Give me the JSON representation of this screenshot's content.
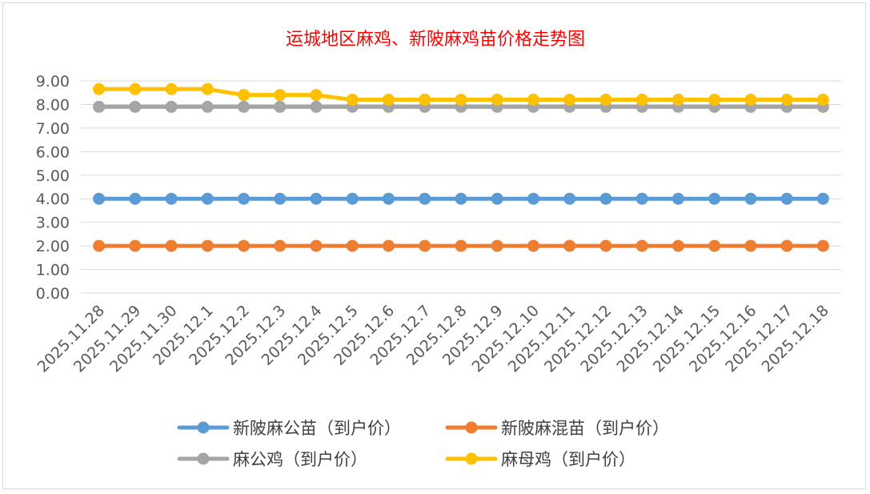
{
  "chart_data": {
    "type": "line",
    "title": "运城地区麻鸡、新陂麻鸡苗价格走势图",
    "xlabel": "",
    "ylabel": "",
    "ylim": [
      0,
      9
    ],
    "y_ticks": [
      "0.00",
      "1.00",
      "2.00",
      "3.00",
      "4.00",
      "5.00",
      "6.00",
      "7.00",
      "8.00",
      "9.00"
    ],
    "grid": true,
    "legend_position": "bottom",
    "categories": [
      "2025.11.28",
      "2025.11.29",
      "2025.11.30",
      "2025.12.1",
      "2025.12.2",
      "2025.12.3",
      "2025.12.4",
      "2025.12.5",
      "2025.12.6",
      "2025.12.7",
      "2025.12.8",
      "2025.12.9",
      "2025.12.10",
      "2025.12.11",
      "2025.12.12",
      "2025.12.13",
      "2025.12.14",
      "2025.12.15",
      "2025.12.16",
      "2025.12.17",
      "2025.12.18"
    ],
    "series": [
      {
        "name": "新陂麻公苗（到户价）",
        "color": "#5b9bd5",
        "values": [
          4.0,
          4.0,
          4.0,
          4.0,
          4.0,
          4.0,
          4.0,
          4.0,
          4.0,
          4.0,
          4.0,
          4.0,
          4.0,
          4.0,
          4.0,
          4.0,
          4.0,
          4.0,
          4.0,
          4.0,
          4.0
        ]
      },
      {
        "name": "新陂麻混苗（到户价）",
        "color": "#ed7d31",
        "values": [
          2.0,
          2.0,
          2.0,
          2.0,
          2.0,
          2.0,
          2.0,
          2.0,
          2.0,
          2.0,
          2.0,
          2.0,
          2.0,
          2.0,
          2.0,
          2.0,
          2.0,
          2.0,
          2.0,
          2.0,
          2.0
        ]
      },
      {
        "name": "麻公鸡（到户价）",
        "color": "#a5a5a5",
        "values": [
          7.9,
          7.9,
          7.9,
          7.9,
          7.9,
          7.9,
          7.9,
          7.9,
          7.9,
          7.9,
          7.9,
          7.9,
          7.9,
          7.9,
          7.9,
          7.9,
          7.9,
          7.9,
          7.9,
          7.9,
          7.9
        ]
      },
      {
        "name": "麻母鸡（到户价）",
        "color": "#ffc000",
        "values": [
          8.65,
          8.65,
          8.65,
          8.65,
          8.4,
          8.4,
          8.4,
          8.2,
          8.2,
          8.2,
          8.2,
          8.2,
          8.2,
          8.2,
          8.2,
          8.2,
          8.2,
          8.2,
          8.2,
          8.2,
          8.2
        ]
      }
    ],
    "colors": {
      "grid": "#d9d9d9",
      "title": "#ff0000",
      "tick_text": "#595959",
      "legend_text": "#404040"
    }
  }
}
